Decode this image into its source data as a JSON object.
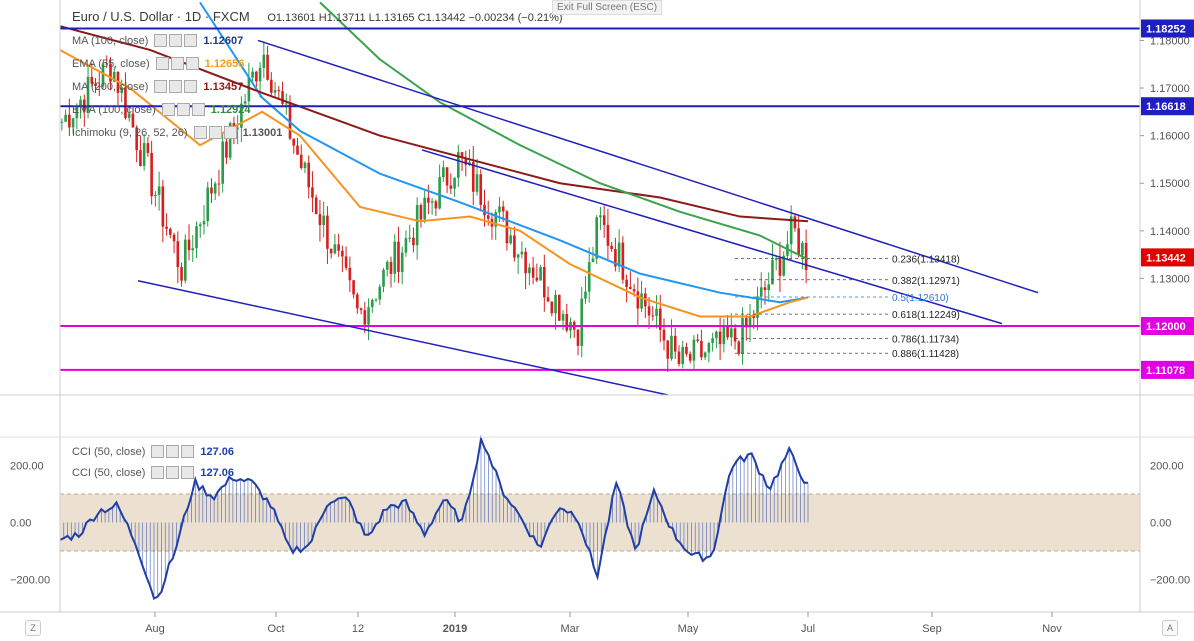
{
  "header": {
    "symbol_name": "Euro / U.S. Dollar · 1D · FXCM",
    "ohlc": {
      "open": "O1.13601",
      "high": "H1.13711",
      "low": "L1.13165",
      "close": "C1.13442",
      "change": "−0.00234 (−0.21%)"
    }
  },
  "exit_fullscreen": "Exit Full Screen (ESC)",
  "legend": [
    {
      "label": "MA (100, close)",
      "value": "1.12607",
      "color": "#1e3a8a"
    },
    {
      "label": "EMA (55, close)",
      "value": "1.12656",
      "color": "#f59e0b"
    },
    {
      "label": "MA (200, close)",
      "value": "1.13457",
      "color": "#8b1a1a"
    },
    {
      "label": "EMA (100, close)",
      "value": "1.12924",
      "color": "#2b8a3e"
    },
    {
      "label": "Ichimoku (9, 26, 52, 26)",
      "value": "1.13001",
      "color": "#555555"
    }
  ],
  "cci_legend": [
    {
      "label": "CCI (50, close)",
      "value": "127.06"
    },
    {
      "label": "CCI (50, close)",
      "value": "127.06"
    }
  ],
  "price_axis": [
    "1.18000",
    "1.17000",
    "1.16000",
    "1.15000",
    "1.14000",
    "1.13000",
    "1.12000"
  ],
  "price_tags": [
    {
      "value": "1.18252",
      "color": "#1f1fbf"
    },
    {
      "value": "1.16618",
      "color": "#1f1fbf"
    },
    {
      "value": "1.13442",
      "color": "#e00000"
    },
    {
      "value": "1.12000",
      "color": "#e000e0"
    },
    {
      "value": "1.11078",
      "color": "#e000e0"
    }
  ],
  "cci_axis": [
    "200.00",
    "0.00",
    "−200.00"
  ],
  "time_axis": [
    "Aug",
    "Oct",
    "12",
    "2019",
    "Mar",
    "May",
    "Jul",
    "Sep",
    "Nov"
  ],
  "fib_labels": [
    {
      "text": "0.236(1.13418)",
      "color": "#222222"
    },
    {
      "text": "0.382(1.12971)",
      "color": "#222222"
    },
    {
      "text": "0.5(1.12610)",
      "color": "#2a7bd6"
    },
    {
      "text": "0.618(1.12249)",
      "color": "#222222"
    },
    {
      "text": "0.786(1.11734)",
      "color": "#222222"
    },
    {
      "text": "0.886(1.11428)",
      "color": "#222222"
    }
  ],
  "corner_left": "Z",
  "corner_right": "A",
  "colors": {
    "up_candle": "#2a9d4a",
    "down_candle": "#d62020",
    "cci_line": "#1f3fa8",
    "cci_band": "#e9dcc9",
    "channel": "#1f1fbf",
    "support": "#e000e0",
    "ma100": "#2196f3",
    "ema55": "#f7931e",
    "ma200": "#8b1a1a",
    "ema100": "#3aa34a"
  },
  "chart_data": {
    "type": "candlestick",
    "title": "Euro / U.S. Dollar · 1D · FXCM",
    "ylim": [
      1.1055,
      1.1885
    ],
    "yticks": [
      1.12,
      1.13,
      1.14,
      1.15,
      1.16,
      1.17,
      1.18
    ],
    "x_range_months": [
      "2018-06",
      "2019-11"
    ],
    "series_summary": [
      {
        "date": "2018-06",
        "close": 1.163
      },
      {
        "date": "2018-07-10",
        "close": 1.175
      },
      {
        "date": "2018-08-15",
        "close": 1.132
      },
      {
        "date": "2018-09-24",
        "close": 1.178
      },
      {
        "date": "2018-10-10",
        "close": 1.154
      },
      {
        "date": "2018-11-12",
        "close": 1.122
      },
      {
        "date": "2019-01-10",
        "close": 1.155
      },
      {
        "date": "2019-03-07",
        "close": 1.119
      },
      {
        "date": "2019-03-20",
        "close": 1.142
      },
      {
        "date": "2019-04-25",
        "close": 1.112
      },
      {
        "date": "2019-05-23",
        "close": 1.118
      },
      {
        "date": "2019-06-25",
        "close": 1.14
      },
      {
        "date": "2019-07-01",
        "close": 1.13442
      }
    ],
    "horizontal_levels": [
      1.18252,
      1.16618,
      1.12,
      1.11078
    ],
    "fibonacci": [
      {
        "ratio": 0.236,
        "price": 1.13418
      },
      {
        "ratio": 0.382,
        "price": 1.12971
      },
      {
        "ratio": 0.5,
        "price": 1.1261
      },
      {
        "ratio": 0.618,
        "price": 1.12249
      },
      {
        "ratio": 0.786,
        "price": 1.11734
      },
      {
        "ratio": 0.886,
        "price": 1.11428
      }
    ],
    "cci": {
      "name": "CCI (50, close)",
      "last": 127.06,
      "ylim": [
        -300,
        300
      ],
      "band": [
        -100,
        100
      ],
      "points": [
        -60,
        -40,
        40,
        60,
        -80,
        -280,
        -100,
        140,
        90,
        160,
        140,
        60,
        -100,
        -80,
        80,
        80,
        -60,
        50,
        70,
        -40,
        80,
        0,
        300,
        120,
        20,
        -90,
        60,
        20,
        -190,
        140,
        -100,
        110,
        -40,
        -120,
        -120,
        200,
        240,
        120,
        250,
        127
      ]
    }
  }
}
